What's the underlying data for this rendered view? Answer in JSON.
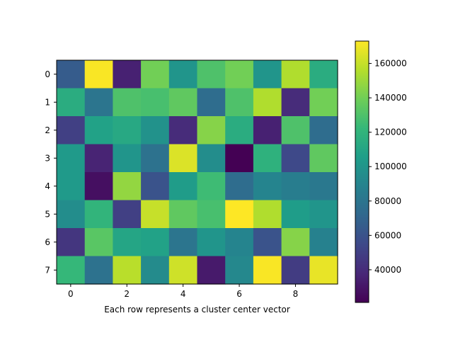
{
  "chart_data": {
    "type": "heatmap",
    "title": "",
    "xlabel": "Each row represents a cluster center vector",
    "ylabel": "",
    "x_ticks": [
      0,
      2,
      4,
      6,
      8
    ],
    "y_ticks": [
      0,
      1,
      2,
      3,
      4,
      5,
      6,
      7
    ],
    "colormap": "viridis",
    "colorbar": {
      "range": [
        21000,
        173000
      ],
      "ticks": [
        40000,
        60000,
        80000,
        100000,
        120000,
        140000,
        160000
      ],
      "tick_labels": [
        "40000",
        "60000",
        "80000",
        "100000",
        "120000",
        "140000",
        "160000"
      ]
    },
    "values": [
      [
        65000,
        172000,
        35000,
        140000,
        100000,
        130000,
        140000,
        100000,
        155000,
        115000
      ],
      [
        115000,
        80000,
        130000,
        128000,
        135000,
        75000,
        130000,
        155000,
        40000,
        140000
      ],
      [
        50000,
        108000,
        112000,
        98000,
        40000,
        145000,
        115000,
        35000,
        130000,
        75000
      ],
      [
        103000,
        36000,
        100000,
        78000,
        165000,
        95000,
        21000,
        118000,
        55000,
        135000
      ],
      [
        103000,
        27000,
        148000,
        60000,
        104000,
        125000,
        75000,
        90000,
        85000,
        82000
      ],
      [
        95000,
        120000,
        50000,
        160000,
        135000,
        128000,
        173000,
        155000,
        105000,
        100000
      ],
      [
        45000,
        133000,
        110000,
        108000,
        80000,
        100000,
        90000,
        60000,
        145000,
        88000
      ],
      [
        122000,
        78000,
        157000,
        94000,
        162000,
        32000,
        92000,
        172000,
        48000,
        168000
      ]
    ]
  }
}
